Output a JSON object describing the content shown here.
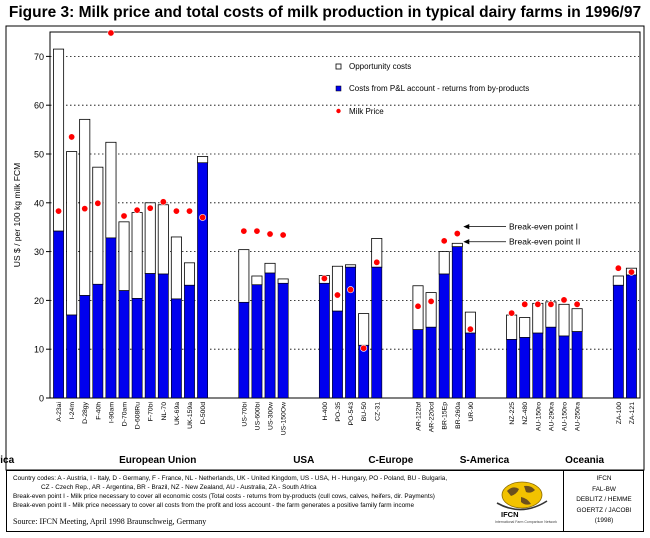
{
  "chart_data": {
    "type": "bar",
    "title": "Figure 3:  Milk price and total costs of milk production in typical dairy farms in 1996/97",
    "ylabel": "US $ / per 100 kg milk FCM",
    "xlabel": "",
    "ylim": [
      0,
      75
    ],
    "yticks": [
      0,
      10,
      20,
      30,
      40,
      50,
      60,
      70
    ],
    "grid": "horizontal-dotted",
    "legend_position": "top-right",
    "legend": [
      {
        "key": "opportunity",
        "label": "Opportunity costs",
        "color": "#ffffff"
      },
      {
        "key": "pl",
        "label": "Costs from P&L account - returns from by-products",
        "color": "#0000ee"
      },
      {
        "key": "milk",
        "label": "Milk Price",
        "color": "#ff0000"
      }
    ],
    "annotations": [
      {
        "label": "Break-even point I",
        "y": 34.5
      },
      {
        "label": "Break-even point II",
        "y": 31
      }
    ],
    "regions": [
      {
        "label": "European Union",
        "from": 0,
        "to": 13
      },
      {
        "label": "USA",
        "from": 14,
        "to": 17
      },
      {
        "label": "C-Europe",
        "from": 18,
        "to": 22
      },
      {
        "label": "S-America",
        "from": 23,
        "to": 27
      },
      {
        "label": "Oceania",
        "from": 28,
        "to": 33
      },
      {
        "label": "Africa",
        "from": 34,
        "to": 35
      }
    ],
    "categories": [
      "A-23ai",
      "I-24m",
      "D-28gy",
      "F-40h",
      "I-90am",
      "D-70am",
      "D-608Ru",
      "F-70bi",
      "NL-70",
      "UK-69a",
      "UK-159a",
      "D-500d",
      "US-70bi",
      "US-600bi",
      "US-300w",
      "US-150Ow",
      "H-400",
      "PO-35",
      "PO-543",
      "BU-50",
      "CZ-31",
      "AR-122bf",
      "AR-220cd",
      "BR-15Ep",
      "BR-260a",
      "UR-90",
      "NZ-225",
      "NZ-480",
      "AU-150ro",
      "AU-290ra",
      "AU-150ro",
      "AU-250ra",
      "ZA-100",
      "ZA-121"
    ],
    "gap_after": [
      11,
      15,
      20,
      25,
      31
    ],
    "series": [
      {
        "name": "Costs from P&L account - returns from by-products",
        "values": [
          34.2,
          17,
          21,
          23.3,
          32.8,
          22,
          20.4,
          25.5,
          25.4,
          20.3,
          23.1,
          48.2,
          19.6,
          23.2,
          25.6,
          23.5,
          23.5,
          17.8,
          26.8,
          10.8,
          26.8,
          14,
          14.5,
          25.4,
          31,
          13.3,
          12,
          12.4,
          13.3,
          14.5,
          12.7,
          13.6,
          23.1,
          25.2
        ]
      },
      {
        "name": "Total costs",
        "values": [
          71.5,
          50.5,
          57.1,
          47.3,
          52.4,
          36.1,
          38,
          40,
          39.6,
          33,
          27.7,
          49.5,
          30.4,
          25,
          27.6,
          24.4,
          25.1,
          27,
          27.3,
          17.3,
          32.7,
          23,
          21.6,
          30,
          31.7,
          17.6,
          17,
          16.5,
          19.4,
          19.7,
          19.2,
          18.3,
          25,
          26.6
        ]
      },
      {
        "name": "Milk Price",
        "values": [
          38.3,
          53.5,
          38.8,
          39.9,
          74.8,
          37.3,
          38.5,
          38.9,
          40.2,
          38.3,
          38.3,
          37,
          34.2,
          34.2,
          33.6,
          33.4,
          24.5,
          21.1,
          22.2,
          10.2,
          27.8,
          18.8,
          19.8,
          32.2,
          33.7,
          14.1,
          17.4,
          19.2,
          19.2,
          19.2,
          20.1,
          19.2,
          26.6,
          25.8
        ]
      }
    ]
  },
  "footer": {
    "line1": "Country codes: A - Austria, I - Italy, D - Germany, F - France, NL - Netherlands, UK - United Kingdom, US - USA, H - Hungary, PO - Poland, BU - Bulgaria,",
    "line2": "CZ - Czech Rep., AR - Argentina, BR - Brazil, NZ - New Zealand, AU - Australia, ZA - South Africa",
    "line3": "Break-even point I - Milk price necessary to cover all economic costs  (Total costs - returns from by-products (cull cows, calves, heifers, dir. Payments)",
    "line4": "Break-even point II - Milk price necessary to cover all costs from the profit and loss account - the farm generates a positive family farm income",
    "source": "Source: IFCN Meeting, April 1998 Braunschweig, Germany",
    "logo_text": "IFCN",
    "logo_sub": "International Farm Comparison Network",
    "credit": [
      "IFCN",
      "FAL-BW",
      "DEBLITZ / HEMME",
      "GOERTZ / JACOBI",
      "(1998)"
    ]
  }
}
